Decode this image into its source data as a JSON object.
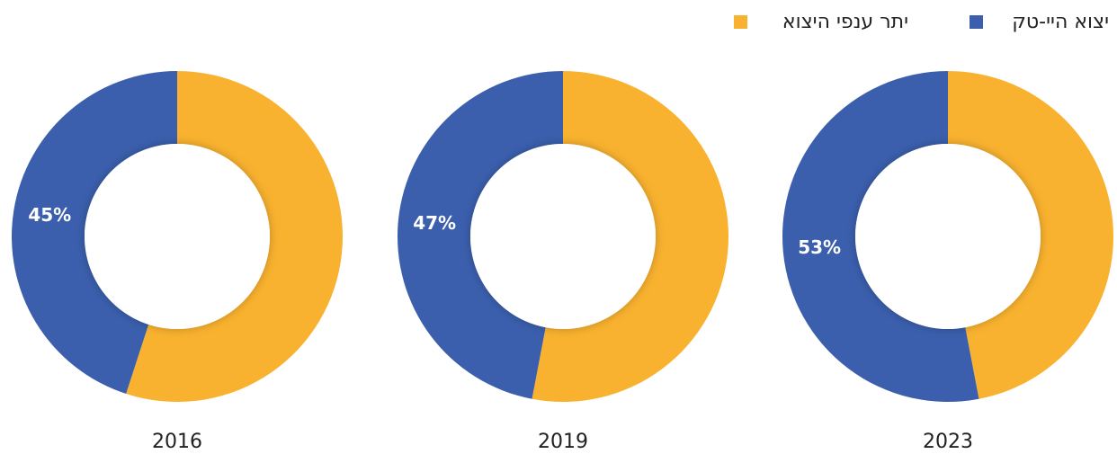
{
  "chart_data": {
    "type": "donut",
    "categories": [
      "2016",
      "2019",
      "2023"
    ],
    "series": [
      {
        "name": "יצוא היי-טק",
        "color": "#3b5fad",
        "values": [
          45,
          47,
          53
        ],
        "value_labels": [
          "45%",
          "47%",
          "53%"
        ]
      },
      {
        "name": "יתר ענפי היצוא",
        "color": "#f9b22f",
        "values": [
          55,
          53,
          47
        ]
      }
    ]
  }
}
